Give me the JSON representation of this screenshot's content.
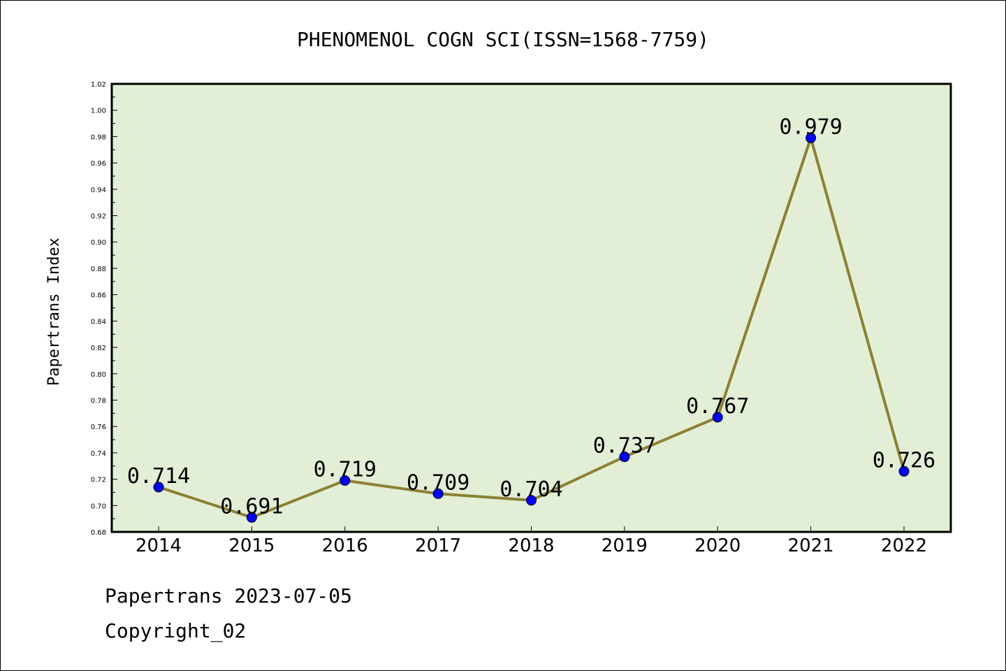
{
  "chart_data": {
    "type": "line",
    "title": "PHENOMENOL COGN SCI(ISSN=1568-7759)",
    "xlabel": "",
    "ylabel": "Papertrans Index",
    "categories": [
      "2014",
      "2015",
      "2016",
      "2017",
      "2018",
      "2019",
      "2020",
      "2021",
      "2022"
    ],
    "series": [
      {
        "values": [
          0.714,
          0.691,
          0.719,
          0.709,
          0.704,
          0.737,
          0.767,
          0.979,
          0.726
        ],
        "labels": [
          "0.714",
          "0.691",
          "0.719",
          "0.709",
          "0.704",
          "0.737",
          "0.767",
          "0.979",
          "0.726"
        ]
      }
    ],
    "ylim": [
      0.68,
      1.02
    ],
    "yticks": [
      "0.68",
      "0.70",
      "0.72",
      "0.74",
      "0.76",
      "0.78",
      "0.80",
      "0.82",
      "0.84",
      "0.86",
      "0.88",
      "0.90",
      "0.92",
      "0.94",
      "0.96",
      "0.98",
      "1.00",
      "1.02"
    ],
    "grid": false,
    "colors": {
      "plot_background": "#e2efd6",
      "line": "#8c8034",
      "marker": "#0000ff"
    }
  },
  "footer": {
    "line1": "Papertrans 2023-07-05",
    "line2": "Copyright_02"
  }
}
